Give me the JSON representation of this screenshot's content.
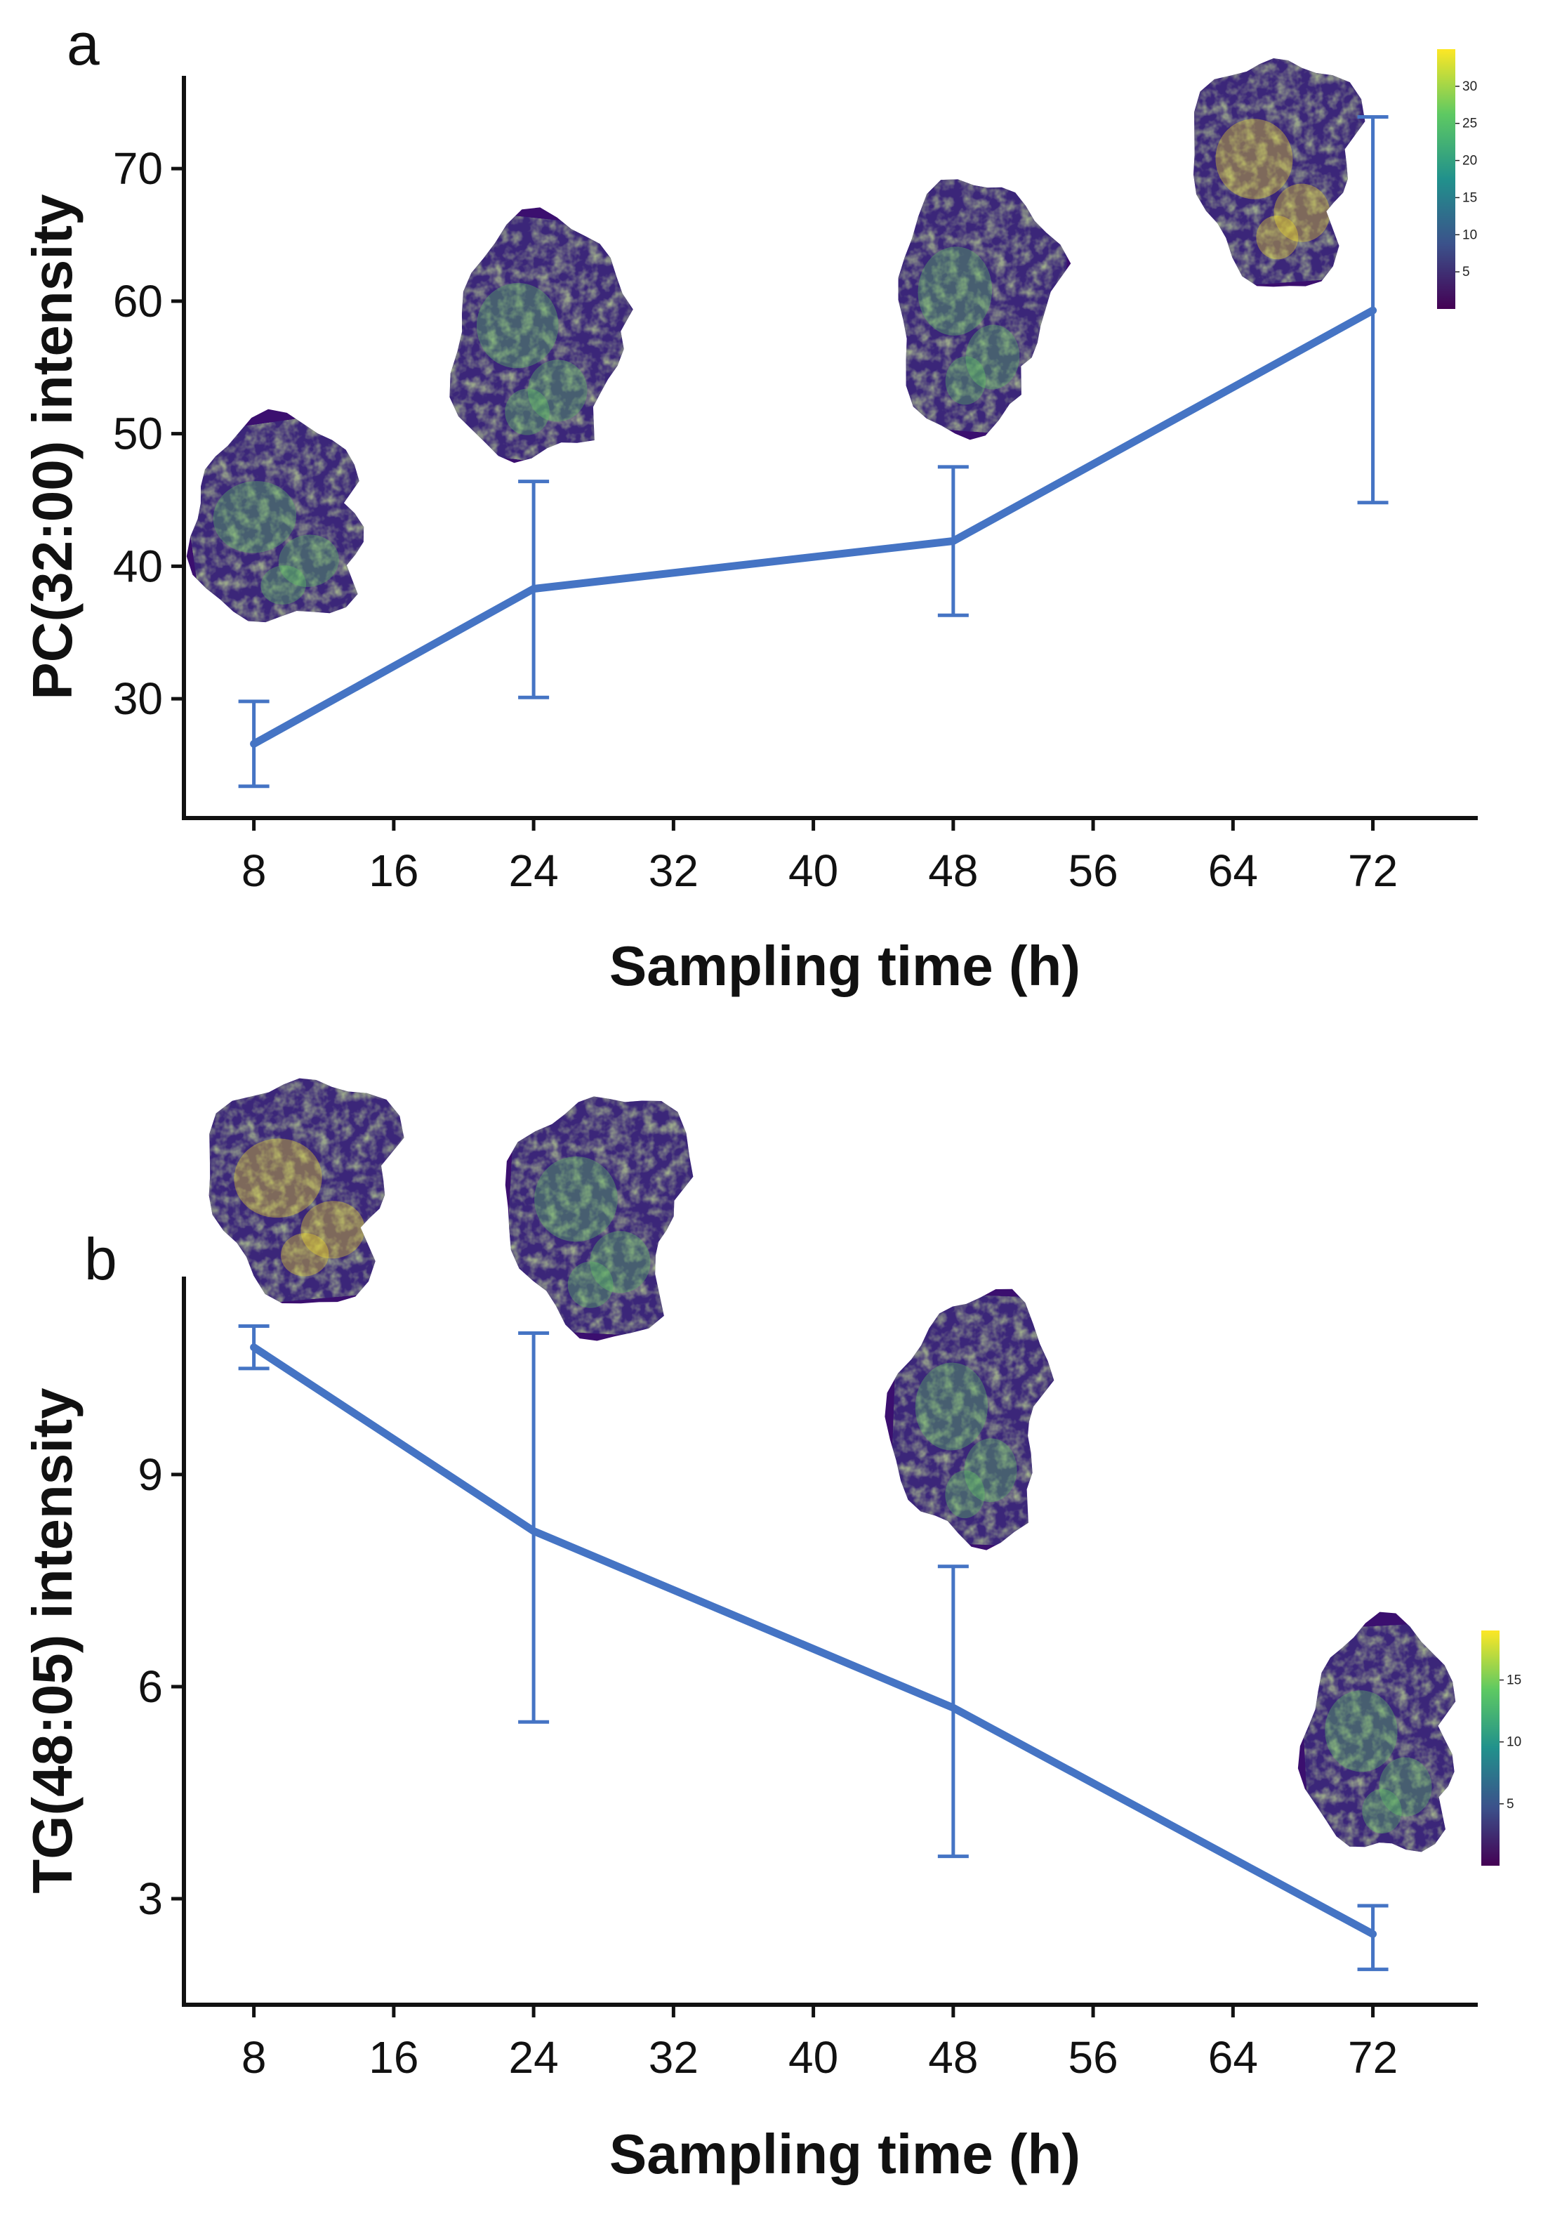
{
  "figure": {
    "colors": {
      "series": "#4574c4",
      "axis": "#111111",
      "tissue_dark": "#3b0f6f",
      "viridis": [
        "#440154",
        "#3b528b",
        "#21918c",
        "#5ec962",
        "#fde725"
      ]
    }
  },
  "chart_data": [
    {
      "type": "line",
      "panel_label": "a",
      "xlabel": "Sampling time (h)",
      "ylabel": "PC(32:00) intensity",
      "xticks": [
        8,
        16,
        24,
        32,
        40,
        48,
        56,
        64,
        72
      ],
      "xlim": [
        4,
        78
      ],
      "yticks": [
        30,
        40,
        50,
        60,
        70
      ],
      "ylim": [
        21,
        77
      ],
      "series": [
        {
          "name": "PC(32:00)",
          "x": [
            8,
            24,
            48,
            72
          ],
          "y": [
            26.6,
            38.3,
            41.9,
            59.3
          ],
          "err_low": [
            23.4,
            30.1,
            36.3,
            44.8
          ],
          "err_high": [
            29.8,
            46.4,
            47.5,
            73.9
          ]
        }
      ],
      "images": [
        {
          "name": "tissue-image-8h",
          "icon": "tissue-section-image"
        },
        {
          "name": "tissue-image-24h",
          "icon": "tissue-section-image"
        },
        {
          "name": "tissue-image-48h",
          "icon": "tissue-section-image"
        },
        {
          "name": "tissue-image-72h",
          "icon": "tissue-section-image"
        }
      ],
      "colorbar": {
        "ticks": [
          5,
          10,
          15,
          20,
          25,
          30
        ],
        "range": [
          0,
          35
        ]
      }
    },
    {
      "type": "line",
      "panel_label": "b",
      "xlabel": "Sampling time (h)",
      "ylabel": "TG(48:05) intensity",
      "xticks": [
        8,
        16,
        24,
        32,
        40,
        48,
        56,
        64,
        72
      ],
      "xlim": [
        4,
        78
      ],
      "yticks": [
        3,
        6,
        9
      ],
      "ylim": [
        1.5,
        11.8
      ],
      "series": [
        {
          "name": "TG(48:05)",
          "x": [
            8,
            24,
            48,
            72
          ],
          "y": [
            10.8,
            8.2,
            5.7,
            2.5
          ],
          "err_low": [
            10.5,
            5.5,
            3.6,
            2.0
          ],
          "err_high": [
            11.1,
            11.0,
            7.7,
            2.9
          ]
        }
      ],
      "images": [
        {
          "name": "tissue-image-8h",
          "icon": "tissue-section-image"
        },
        {
          "name": "tissue-image-24h",
          "icon": "tissue-section-image"
        },
        {
          "name": "tissue-image-48h",
          "icon": "tissue-section-image"
        },
        {
          "name": "tissue-image-72h",
          "icon": "tissue-section-image"
        }
      ],
      "colorbar": {
        "ticks": [
          5,
          10,
          15
        ],
        "range": [
          0,
          19
        ]
      }
    }
  ]
}
